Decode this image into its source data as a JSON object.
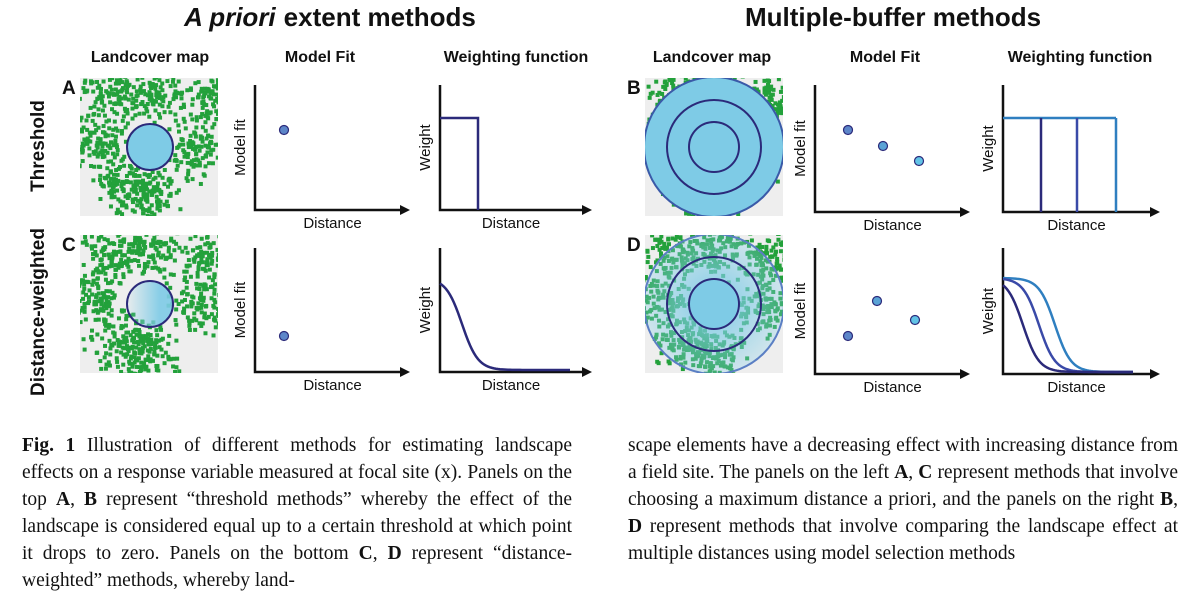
{
  "titles": {
    "left_italic": "A priori",
    "left_rest": "extent methods",
    "right": "Multiple-buffer methods"
  },
  "column_headers": {
    "left": [
      "Landcover map",
      "Model Fit",
      "Weighting function"
    ],
    "right": [
      "Landcover map",
      "Model Fit",
      "Weighting function"
    ]
  },
  "row_labels": [
    "Threshold",
    "Distance-weighted"
  ],
  "panels": [
    {
      "letter": "A",
      "fit_ylabel": "Model fit",
      "fit_xlabel": "Distance",
      "weight_ylabel": "Weight",
      "weight_xlabel": "Distance"
    },
    {
      "letter": "B",
      "fit_ylabel": "Model fit",
      "fit_xlabel": "Distance",
      "weight_ylabel": "Weight",
      "weight_xlabel": "Distance"
    },
    {
      "letter": "C",
      "fit_ylabel": "Model fit",
      "fit_xlabel": "Distance",
      "weight_ylabel": "Weight",
      "weight_xlabel": "Distance"
    },
    {
      "letter": "D",
      "fit_ylabel": "Model fit",
      "fit_xlabel": "Distance",
      "weight_ylabel": "Weight",
      "weight_xlabel": "Distance"
    }
  ],
  "caption": {
    "columns": [
      [
        {
          "text": "Fig. 1",
          "bold": true
        },
        {
          "text": " Illustration of different methods for estimating landscape effects on a response variable measured at focal site (x). Panels on the top "
        },
        {
          "text": "A",
          "bold": true
        },
        {
          "text": ", "
        },
        {
          "text": "B",
          "bold": true
        },
        {
          "text": " represent “threshold methods” whereby the effect of the landscape is considered equal up to a certain threshold at which point it drops to zero. Panels on the bottom "
        },
        {
          "text": "C",
          "bold": true
        },
        {
          "text": ", "
        },
        {
          "text": "D",
          "bold": true
        },
        {
          "text": " represent “distance-weighted” methods, whereby land-"
        }
      ],
      [
        {
          "text": "scape elements have a decreasing effect with increasing distance from a field site. The panels on the left "
        },
        {
          "text": "A",
          "bold": true
        },
        {
          "text": ", "
        },
        {
          "text": "C",
          "bold": true
        },
        {
          "text": " represent methods that involve choosing a maximum distance a priori, and the panels on the right "
        },
        {
          "text": "B",
          "bold": true
        },
        {
          "text": ", "
        },
        {
          "text": "D",
          "bold": true
        },
        {
          "text": " represent methods that involve comparing the landscape effect at multiple distances using model selection methods"
        }
      ]
    ]
  }
}
